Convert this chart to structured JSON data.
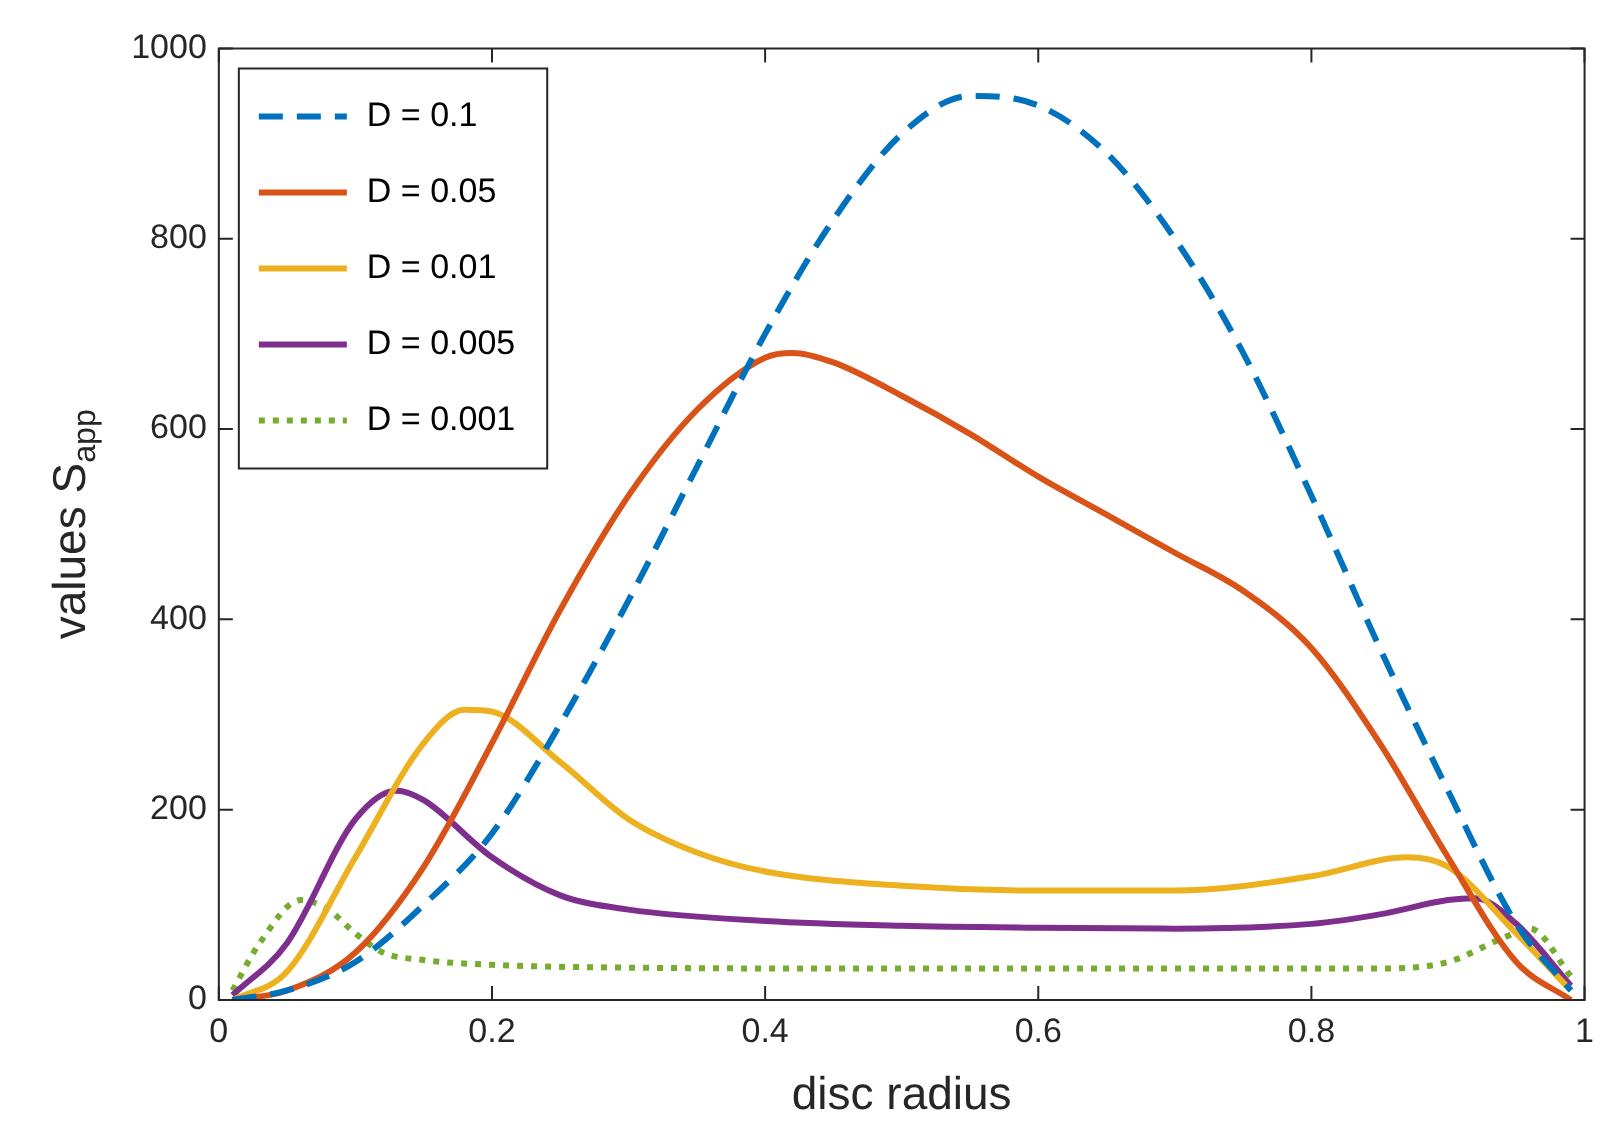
{
  "chart_data": {
    "type": "line",
    "xlabel": "disc radius",
    "ylabel": "values S$_{app}$",
    "xlim": [
      0,
      1
    ],
    "xticks": [
      0,
      0.2,
      0.4,
      0.6,
      0.8,
      1
    ],
    "ylim": [
      0,
      1000
    ],
    "yticks": [
      0,
      200,
      400,
      600,
      800,
      1000
    ],
    "grid": false,
    "legend": "top left",
    "marker": "none",
    "series": [
      {
        "name": "D = 0.1",
        "color": "#0072bd",
        "line_style": "dashed",
        "x": [
          0.01,
          0.05,
          0.1,
          0.15,
          0.2,
          0.25,
          0.3,
          0.35,
          0.4,
          0.45,
          0.5,
          0.55,
          0.6,
          0.65,
          0.7,
          0.75,
          0.8,
          0.85,
          0.9,
          0.95,
          0.99
        ],
        "values": [
          0,
          10,
          40,
          100,
          175,
          290,
          420,
          560,
          700,
          820,
          910,
          950,
          940,
          890,
          800,
          680,
          530,
          370,
          220,
          80,
          10
        ]
      },
      {
        "name": "D = 0.05",
        "color": "#d95319",
        "line_style": "solid",
        "x": [
          0.01,
          0.05,
          0.1,
          0.15,
          0.2,
          0.25,
          0.3,
          0.35,
          0.4,
          0.42,
          0.45,
          0.5,
          0.55,
          0.6,
          0.65,
          0.7,
          0.75,
          0.8,
          0.85,
          0.9,
          0.95,
          0.99
        ],
        "values": [
          0,
          10,
          50,
          140,
          270,
          410,
          530,
          620,
          675,
          680,
          670,
          635,
          595,
          550,
          510,
          470,
          430,
          370,
          270,
          150,
          40,
          0
        ]
      },
      {
        "name": "D = 0.01",
        "color": "#edb120",
        "line_style": "solid",
        "x": [
          0.01,
          0.05,
          0.1,
          0.15,
          0.18,
          0.2,
          0.25,
          0.3,
          0.35,
          0.4,
          0.5,
          0.6,
          0.7,
          0.8,
          0.87,
          0.9,
          0.95,
          0.99
        ],
        "values": [
          0,
          30,
          150,
          270,
          305,
          303,
          250,
          190,
          155,
          135,
          120,
          115,
          115,
          130,
          150,
          140,
          70,
          10
        ]
      },
      {
        "name": "D = 0.005",
        "color": "#7e2f8e",
        "line_style": "solid",
        "x": [
          0.01,
          0.05,
          0.1,
          0.13,
          0.15,
          0.2,
          0.25,
          0.3,
          0.4,
          0.5,
          0.6,
          0.7,
          0.8,
          0.85,
          0.9,
          0.92,
          0.95,
          0.99
        ],
        "values": [
          5,
          60,
          190,
          220,
          210,
          150,
          110,
          95,
          83,
          78,
          76,
          75,
          80,
          90,
          105,
          107,
          80,
          15
        ]
      },
      {
        "name": "D = 0.001",
        "color": "#77ac30",
        "line_style": "dotted",
        "x": [
          0.01,
          0.03,
          0.06,
          0.08,
          0.1,
          0.12,
          0.15,
          0.2,
          0.3,
          0.5,
          0.7,
          0.85,
          0.9,
          0.94,
          0.96,
          0.99
        ],
        "values": [
          10,
          60,
          105,
          95,
          70,
          50,
          42,
          37,
          34,
          33,
          33,
          33,
          40,
          65,
          75,
          25
        ]
      }
    ]
  }
}
